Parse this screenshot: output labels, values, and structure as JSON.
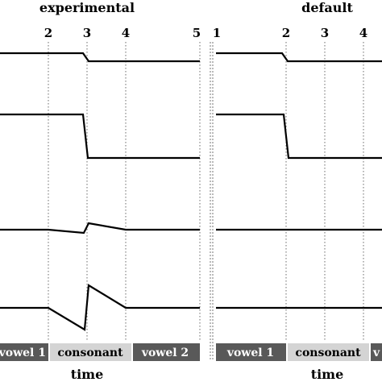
{
  "colors": {
    "trace": "#000000",
    "segment_dark": "#595959",
    "segment_light": "#d4d4d4",
    "segment_text_dark": "#ffffff",
    "segment_text_light": "#000000"
  },
  "panels": [
    {
      "title": "experimental",
      "landmarks": [
        {
          "label": "2",
          "position": 2
        },
        {
          "label": "3",
          "position": 3
        },
        {
          "label": "4",
          "position": 4
        },
        {
          "label": "5",
          "position": 5
        }
      ],
      "segments": [
        {
          "label": "vowel 1",
          "shade": "dark",
          "start": 1,
          "end": 2
        },
        {
          "label": "consonant",
          "shade": "light",
          "start": 2,
          "end": 3.8
        },
        {
          "label": "vowel 2",
          "shade": "dark",
          "start": 3.8,
          "end": 5
        }
      ],
      "traces": [
        {
          "points": [
            [
              1,
              1
            ],
            [
              2.9,
              1
            ],
            [
              3,
              0.82
            ],
            [
              5,
              0.82
            ]
          ]
        },
        {
          "points": [
            [
              1,
              1
            ],
            [
              2.9,
              1
            ],
            [
              3,
              0.05
            ],
            [
              5,
              0.05
            ]
          ]
        },
        {
          "points": [
            [
              1,
              0.5
            ],
            [
              2.05,
              0.5
            ],
            [
              2.9,
              0.28
            ],
            [
              3,
              0.62
            ],
            [
              3.8,
              0.5
            ],
            [
              5,
              0.5
            ]
          ]
        },
        {
          "points": [
            [
              1,
              0.5
            ],
            [
              2.05,
              0.5
            ],
            [
              2.95,
              -0.05
            ],
            [
              3,
              0.95
            ],
            [
              3.95,
              0.5
            ],
            [
              5,
              0.5
            ]
          ]
        }
      ],
      "xlabel": "time"
    },
    {
      "title": "default",
      "landmarks": [
        {
          "label": "1",
          "position": 1
        },
        {
          "label": "2",
          "position": 2
        },
        {
          "label": "3",
          "position": 3
        },
        {
          "label": "4",
          "position": 4
        }
      ],
      "segments": [
        {
          "label": "vowel 1",
          "shade": "dark",
          "start": 1,
          "end": 2
        },
        {
          "label": "consonant",
          "shade": "light",
          "start": 2,
          "end": 3.8
        },
        {
          "label": "v",
          "shade": "dark",
          "start": 3.8,
          "end": 5
        }
      ],
      "traces": [
        {
          "points": [
            [
              1,
              1
            ],
            [
              1.9,
              1
            ],
            [
              2.1,
              0.82
            ],
            [
              5,
              0.82
            ]
          ]
        },
        {
          "points": [
            [
              1,
              1
            ],
            [
              1.95,
              1
            ],
            [
              2.1,
              0.05
            ],
            [
              5,
              0.05
            ]
          ]
        },
        {
          "points": [
            [
              1,
              0.5
            ],
            [
              5,
              0.5
            ]
          ]
        },
        {
          "points": [
            [
              1,
              0.5
            ],
            [
              5,
              0.5
            ]
          ]
        }
      ],
      "xlabel": "time"
    }
  ]
}
